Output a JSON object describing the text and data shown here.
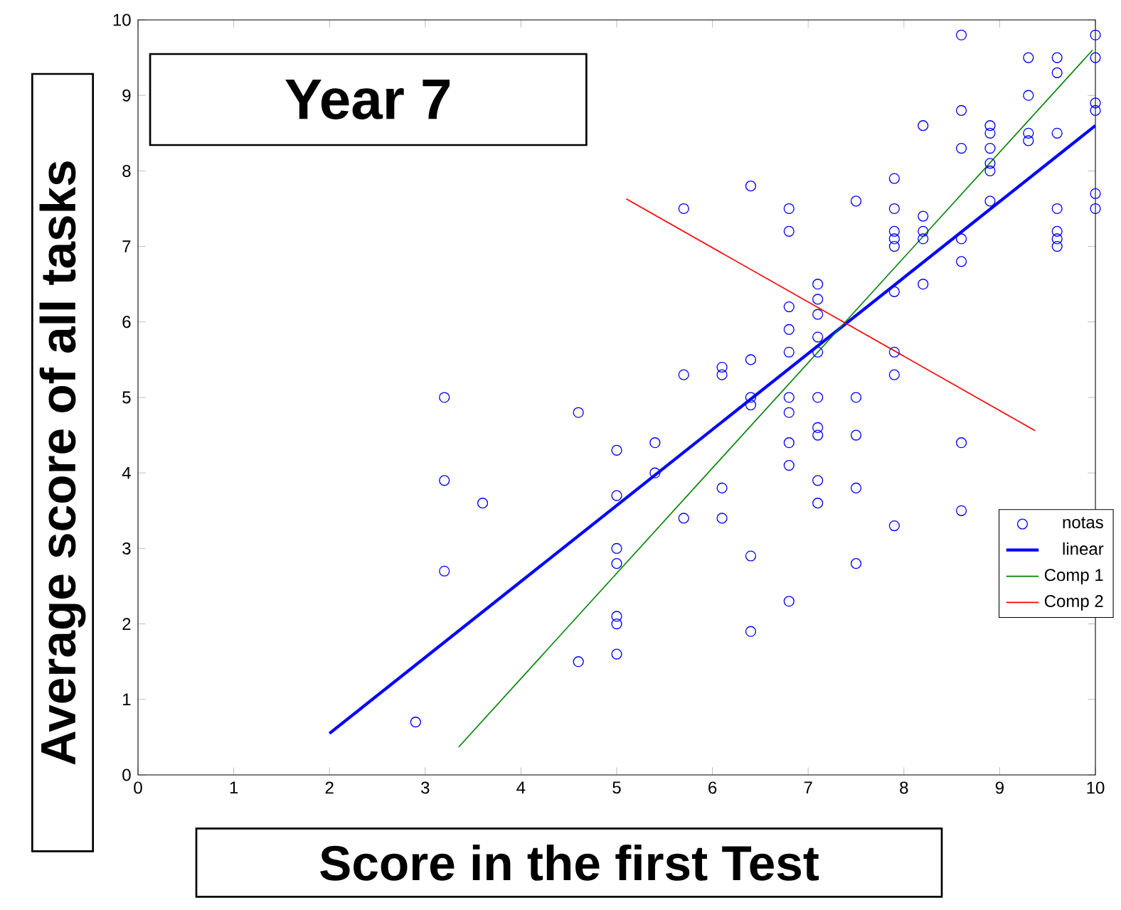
{
  "chart_data": {
    "type": "scatter",
    "title": "Year 7",
    "xlabel": "Score in the first Test",
    "ylabel": "Average score of all tasks",
    "xlim": [
      0,
      10
    ],
    "ylim": [
      0,
      10
    ],
    "xticks": [
      0,
      1,
      2,
      3,
      4,
      5,
      6,
      7,
      8,
      9,
      10
    ],
    "yticks": [
      0,
      1,
      2,
      3,
      4,
      5,
      6,
      7,
      8,
      9,
      10
    ],
    "grid": false,
    "legend": "right",
    "series": [
      {
        "name": "notas",
        "marker": "circle",
        "color": "#0000ff",
        "x": [
          2.9,
          3.2,
          3.2,
          3.2,
          3.6,
          4.6,
          4.6,
          5.0,
          5.0,
          5.0,
          5.0,
          5.0,
          5.0,
          5.0,
          5.4,
          5.4,
          5.7,
          5.7,
          5.7,
          6.1,
          6.1,
          6.1,
          6.1,
          6.4,
          6.4,
          6.4,
          6.4,
          6.4,
          6.4,
          6.8,
          6.8,
          6.8,
          6.8,
          6.8,
          6.8,
          6.8,
          6.8,
          6.8,
          6.8,
          7.1,
          7.1,
          7.1,
          7.1,
          7.1,
          7.1,
          7.1,
          7.1,
          7.1,
          7.1,
          7.5,
          7.5,
          7.5,
          7.5,
          7.5,
          7.9,
          7.9,
          7.9,
          7.9,
          7.9,
          7.9,
          7.9,
          7.9,
          7.9,
          8.2,
          8.2,
          8.2,
          8.2,
          8.2,
          8.6,
          8.6,
          8.6,
          8.6,
          8.6,
          8.6,
          8.6,
          8.9,
          8.9,
          8.9,
          8.9,
          8.9,
          8.9,
          9.3,
          9.3,
          9.3,
          9.3,
          9.6,
          9.6,
          9.6,
          9.6,
          9.6,
          9.6,
          9.6,
          10.0,
          10.0,
          10.0,
          10.0,
          10.0,
          10.0
        ],
        "values": [
          0.7,
          5.0,
          3.9,
          2.7,
          3.6,
          4.8,
          1.5,
          4.3,
          3.7,
          3.0,
          2.8,
          2.1,
          2.0,
          1.6,
          4.4,
          4.0,
          7.5,
          5.3,
          3.4,
          5.4,
          5.3,
          3.8,
          3.4,
          7.8,
          5.5,
          5.0,
          4.9,
          2.9,
          1.9,
          7.5,
          7.2,
          6.2,
          5.9,
          5.6,
          5.0,
          4.8,
          4.4,
          4.1,
          2.3,
          6.5,
          6.3,
          6.1,
          5.8,
          5.6,
          5.0,
          4.6,
          4.5,
          3.9,
          3.6,
          7.6,
          5.0,
          4.5,
          3.8,
          2.8,
          7.9,
          7.5,
          7.2,
          7.1,
          7.0,
          6.4,
          5.6,
          5.3,
          3.3,
          8.6,
          7.4,
          7.2,
          7.1,
          6.5,
          9.8,
          8.8,
          8.3,
          7.1,
          6.8,
          4.4,
          3.5,
          8.6,
          8.5,
          8.3,
          8.1,
          8.0,
          7.6,
          9.5,
          9.0,
          8.5,
          8.4,
          9.5,
          9.3,
          8.5,
          7.5,
          7.2,
          7.1,
          7.0,
          9.8,
          9.5,
          8.9,
          8.8,
          7.7,
          7.5
        ]
      },
      {
        "name": "linear",
        "type": "line",
        "marker": "none",
        "color": "#0000ff",
        "x": [
          2.0,
          10.0
        ],
        "values": [
          0.55,
          8.6
        ]
      },
      {
        "name": "Comp 1",
        "type": "line",
        "marker": "none",
        "color": "#008000",
        "x": [
          3.35,
          9.97
        ],
        "values": [
          0.37,
          9.6
        ]
      },
      {
        "name": "Comp 2",
        "type": "line",
        "marker": "none",
        "color": "#ff0000",
        "x": [
          5.1,
          9.37
        ],
        "values": [
          7.63,
          4.56
        ]
      }
    ]
  }
}
